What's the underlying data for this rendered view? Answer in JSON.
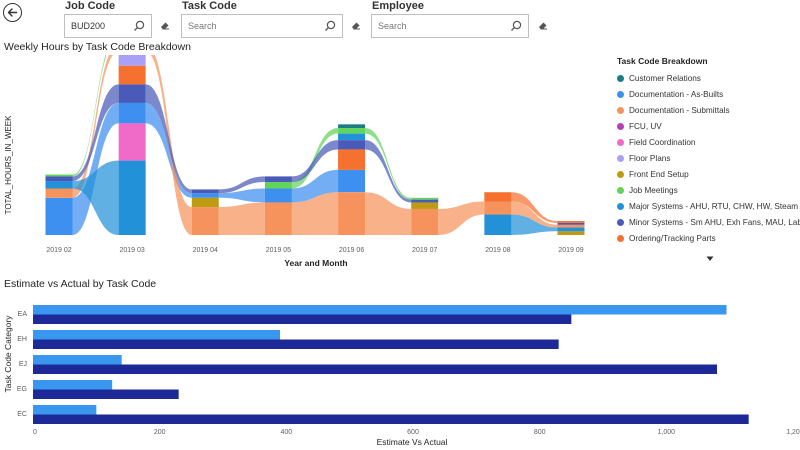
{
  "filters": {
    "job_code": {
      "label": "Job Code",
      "value": "BUD200"
    },
    "task_code": {
      "label": "Task Code",
      "placeholder": "Search"
    },
    "employee": {
      "label": "Employee",
      "placeholder": "Search"
    }
  },
  "colors": {
    "estimate": "#3a97f0",
    "actual": "#1d2996"
  },
  "legend": {
    "title": "Task Code Breakdown",
    "items": [
      {
        "label": "Customer Relations",
        "color": "#1a7d86"
      },
      {
        "label": "Documentation - As-Builts",
        "color": "#3d8ff0"
      },
      {
        "label": "Documentation - Submittals",
        "color": "#f6935c"
      },
      {
        "label": "FCU, UV",
        "color": "#b23fb8"
      },
      {
        "label": "Field Coordination",
        "color": "#ef6bc7"
      },
      {
        "label": "Floor Plans",
        "color": "#a9a1f7"
      },
      {
        "label": "Front End Setup",
        "color": "#bf9b14"
      },
      {
        "label": "Job Meetings",
        "color": "#62d35b"
      },
      {
        "label": "Major Systems - AHU, RTU, CHW, HW, Steam",
        "color": "#2291d8"
      },
      {
        "label": "Minor Systems - Sm AHU, Exh Fans, MAU, Labs",
        "color": "#4a5ab8"
      },
      {
        "label": "Ordering/Tracking Parts",
        "color": "#f6702f"
      }
    ]
  },
  "chart_data": [
    {
      "type": "area",
      "title": "Weekly Hours by Task Code Breakdown",
      "xlabel": "Year and Month",
      "ylabel": "TOTAL_HOURS_IN_WEEK",
      "categories": [
        "2019 02",
        "2019 03",
        "2019 04",
        "2019 05",
        "2019 06",
        "2019 07",
        "2019 08",
        "2019 09"
      ],
      "series": [
        {
          "name": "Customer Relations",
          "values": [
            0,
            0,
            0,
            0,
            4,
            0,
            0,
            0
          ]
        },
        {
          "name": "Documentation - As-Builts",
          "values": [
            40,
            22,
            5,
            15,
            24,
            0,
            0,
            0
          ]
        },
        {
          "name": "Documentation - Submittals",
          "values": [
            10,
            8,
            30,
            35,
            46,
            28,
            14,
            3
          ]
        },
        {
          "name": "FCU, UV",
          "values": [
            0,
            6,
            0,
            0,
            0,
            0,
            0,
            0
          ]
        },
        {
          "name": "Field Coordination",
          "values": [
            0,
            40,
            0,
            0,
            0,
            0,
            0,
            0
          ]
        },
        {
          "name": "Floor Plans",
          "values": [
            0,
            15,
            0,
            0,
            0,
            0,
            0,
            0
          ]
        },
        {
          "name": "Front End Setup",
          "values": [
            0,
            0,
            10,
            0,
            0,
            7,
            0,
            4
          ]
        },
        {
          "name": "Job Meetings",
          "values": [
            2,
            4,
            0,
            7,
            6,
            2,
            0,
            0
          ]
        },
        {
          "name": "Major Systems - AHU, RTU, CHW, HW, Steam",
          "values": [
            8,
            80,
            0,
            0,
            7,
            0,
            22,
            4
          ]
        },
        {
          "name": "Minor Systems - Sm AHU, Exh Fans, MAU, Labs",
          "values": [
            5,
            20,
            4,
            6,
            10,
            3,
            0,
            2
          ]
        },
        {
          "name": "Ordering/Tracking Parts",
          "values": [
            0,
            20,
            0,
            0,
            22,
            0,
            10,
            2
          ]
        }
      ]
    },
    {
      "type": "bar",
      "orientation": "horizontal",
      "title": "Estimate vs Actual by Task Code",
      "xlabel": "Estimate Vs Actual",
      "ylabel": "Task Code Category",
      "categories": [
        "EA",
        "EH",
        "EJ",
        "EG",
        "EC"
      ],
      "series": [
        {
          "values": [
            1095,
            390,
            140,
            125,
            100
          ]
        },
        {
          "values": [
            850,
            830,
            1080,
            230,
            1130
          ]
        }
      ],
      "xlim": [
        0,
        1200
      ],
      "xticks": [
        "0",
        "200",
        "400",
        "600",
        "800",
        "1,000",
        "1,20"
      ]
    }
  ]
}
